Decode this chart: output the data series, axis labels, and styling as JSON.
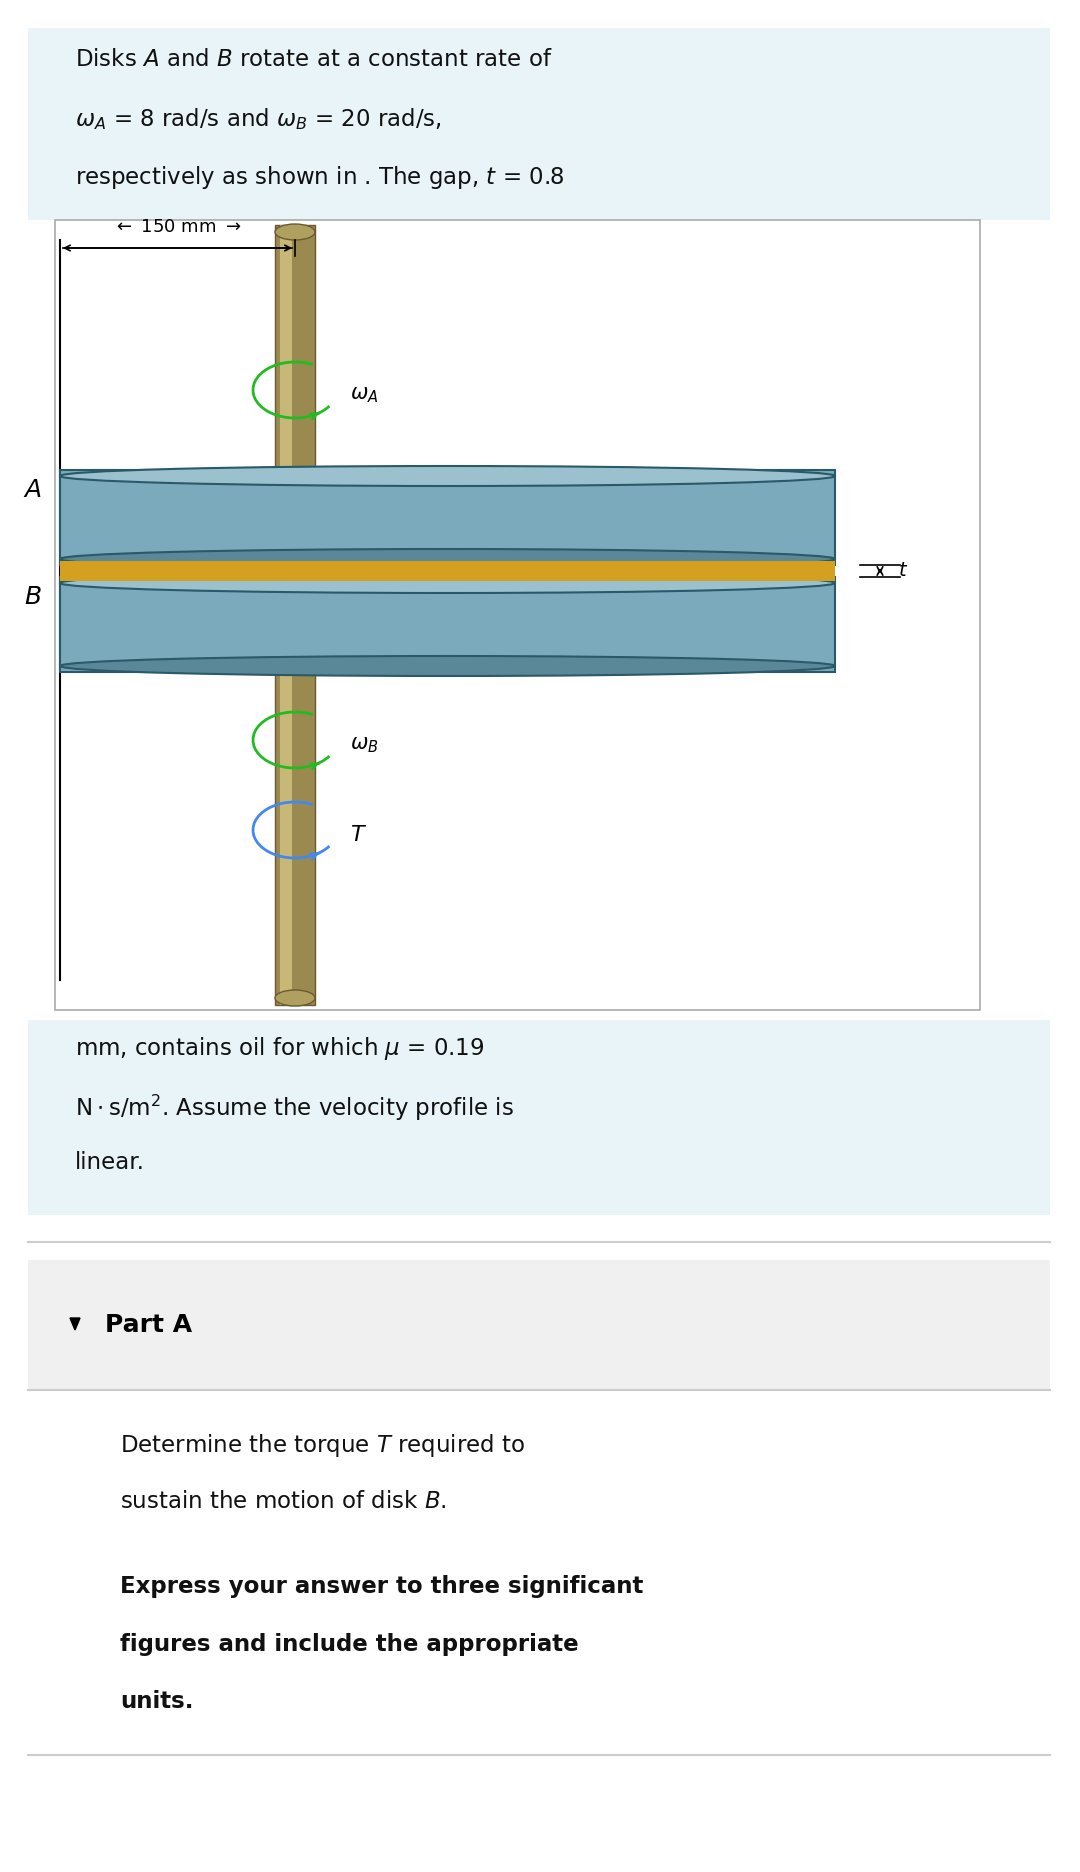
{
  "bg_light_blue": "#e8f4f8",
  "bg_white": "#ffffff",
  "bg_part": "#f0f0f0",
  "disk_face_color": "#7aaabb",
  "disk_top_color": "#9bc0ce",
  "disk_bot_color": "#5a8898",
  "disk_edge_color": "#2a5a6a",
  "shaft_main_color": "#9a8a50",
  "shaft_hi_color": "#c8b878",
  "shaft_dark_color": "#6a5a30",
  "gap_color": "#d4a020",
  "green_arrow": "#22bb22",
  "blue_arrow": "#4488ee",
  "text_color": "#111111",
  "line_color": "#cccccc",
  "diagram_border": "#aaaaaa",
  "problem_lines": [
    "Disks $\\mathit{A}$ and $\\mathit{B}$ rotate at a constant rate of",
    "$\\omega_A$ = 8 rad/s and $\\omega_B$ = 20 rad/s,",
    "respectively as shown in . The gap, $t$ = 0.8"
  ],
  "bottom_lines": [
    "mm, contains oil for which $\\mu$ = 0.19",
    "$\\mathrm{N \\cdot s/m^2}$. Assume the velocity profile is",
    "linear."
  ],
  "part_text1": "Determine the torque $\\mathit{T}$ required to",
  "part_text2": "sustain the motion of disk $\\mathit{B}$.",
  "bold1": "Express your answer to three significant",
  "bold2": "figures and include the appropriate",
  "bold3": "units."
}
